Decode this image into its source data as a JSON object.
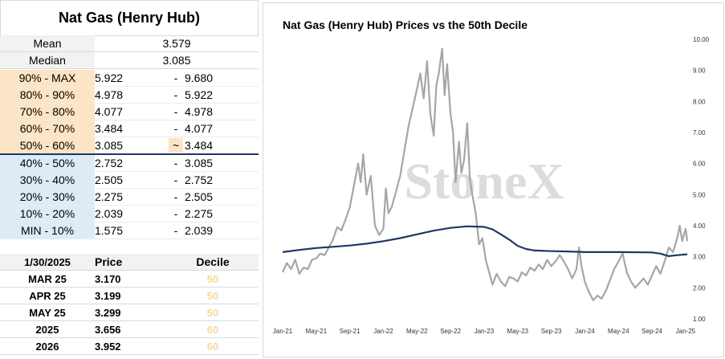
{
  "left_panel": {
    "title": "Nat Gas (Henry Hub)",
    "stats": [
      {
        "label": "Mean",
        "value": "3.579"
      },
      {
        "label": "Median",
        "value": "3.085"
      }
    ],
    "deciles": [
      {
        "label": "90% - MAX",
        "low": "5.922",
        "sep": "-",
        "high": "9.680",
        "group": "upper"
      },
      {
        "label": "80% - 90%",
        "low": "4.978",
        "sep": "-",
        "high": "5.922",
        "group": "upper"
      },
      {
        "label": "70% - 80%",
        "low": "4.077",
        "sep": "-",
        "high": "4.978",
        "group": "upper"
      },
      {
        "label": "60% - 70%",
        "low": "3.484",
        "sep": "-",
        "high": "4.077",
        "group": "upper"
      },
      {
        "label": "50% - 60%",
        "low": "3.085",
        "sep": "~",
        "high": "3.484",
        "group": "upper"
      },
      {
        "label": "40% - 50%",
        "low": "2.752",
        "sep": "-",
        "high": "3.085",
        "group": "lower"
      },
      {
        "label": "30% - 40%",
        "low": "2.505",
        "sep": "-",
        "high": "2.752",
        "group": "lower"
      },
      {
        "label": "20% - 30%",
        "low": "2.275",
        "sep": "-",
        "high": "2.505",
        "group": "lower"
      },
      {
        "label": "10% - 20%",
        "low": "2.039",
        "sep": "-",
        "high": "2.275",
        "group": "lower"
      },
      {
        "label": "MIN - 10%",
        "low": "1.575",
        "sep": "-",
        "high": "2.039",
        "group": "lower"
      }
    ],
    "price_table": {
      "date": "1/30/2025",
      "price_header": "Price",
      "decile_header": "Decile",
      "rows": [
        {
          "label": "MAR 25",
          "price": "3.170",
          "decile": "50"
        },
        {
          "label": "APR 25",
          "price": "3.199",
          "decile": "50"
        },
        {
          "label": "MAY 25",
          "price": "3.299",
          "decile": "50"
        },
        {
          "label": "2025",
          "price": "3.656",
          "decile": "60"
        },
        {
          "label": "2026",
          "price": "3.952",
          "decile": "60"
        }
      ]
    }
  },
  "colors": {
    "upper_decile": "#fce4c4",
    "lower_decile": "#ddebf7",
    "price_line": "#a6a6a6",
    "median_line": "#1f3864",
    "decile_text": "#f6d89c"
  },
  "watermark": "StoneX",
  "chart_data": {
    "type": "line",
    "title": "Nat Gas (Henry Hub) Prices vs the 50th Decile",
    "x_unit": "months since Jan-21",
    "x_ticks": [
      {
        "x": 0,
        "label": "Jan-21"
      },
      {
        "x": 4,
        "label": "May-21"
      },
      {
        "x": 8,
        "label": "Sep-21"
      },
      {
        "x": 12,
        "label": "Jan-22"
      },
      {
        "x": 16,
        "label": "May-22"
      },
      {
        "x": 20,
        "label": "Sep-22"
      },
      {
        "x": 24,
        "label": "Jan-23"
      },
      {
        "x": 28,
        "label": "May-23"
      },
      {
        "x": 32,
        "label": "Sep-23"
      },
      {
        "x": 36,
        "label": "Jan-24"
      },
      {
        "x": 40,
        "label": "May-24"
      },
      {
        "x": 44,
        "label": "Sep-24"
      },
      {
        "x": 48,
        "label": "Jan-25"
      }
    ],
    "y_ticks": [
      "1.00",
      "2.00",
      "3.00",
      "4.00",
      "5.00",
      "6.00",
      "7.00",
      "8.00",
      "9.00",
      "10.00"
    ],
    "ylim": [
      1,
      10
    ],
    "xlim": [
      0,
      48.2
    ],
    "y_axis_side": "right",
    "grid": false,
    "series": [
      {
        "style": "price",
        "points": [
          [
            0,
            2.5
          ],
          [
            0.5,
            2.8
          ],
          [
            1,
            2.6
          ],
          [
            1.5,
            2.9
          ],
          [
            2,
            2.45
          ],
          [
            2.5,
            2.65
          ],
          [
            3,
            2.6
          ],
          [
            3.5,
            2.9
          ],
          [
            4,
            2.95
          ],
          [
            4.5,
            3.1
          ],
          [
            5,
            3.05
          ],
          [
            5.5,
            3.3
          ],
          [
            6,
            3.55
          ],
          [
            6.5,
            3.95
          ],
          [
            7,
            3.85
          ],
          [
            7.5,
            4.2
          ],
          [
            8,
            4.6
          ],
          [
            8.5,
            5.3
          ],
          [
            9,
            6.0
          ],
          [
            9.3,
            5.4
          ],
          [
            9.6,
            6.3
          ],
          [
            10,
            5.0
          ],
          [
            10.5,
            5.6
          ],
          [
            11,
            4.0
          ],
          [
            11.5,
            3.7
          ],
          [
            12,
            3.9
          ],
          [
            12.3,
            5.2
          ],
          [
            12.6,
            4.4
          ],
          [
            13,
            4.6
          ],
          [
            13.5,
            5.1
          ],
          [
            14,
            5.6
          ],
          [
            14.5,
            6.4
          ],
          [
            15,
            7.2
          ],
          [
            15.5,
            7.8
          ],
          [
            16,
            8.4
          ],
          [
            16.4,
            8.9
          ],
          [
            16.8,
            8.1
          ],
          [
            17.2,
            9.3
          ],
          [
            17.6,
            7.6
          ],
          [
            18,
            6.9
          ],
          [
            18.3,
            8.5
          ],
          [
            18.6,
            8.9
          ],
          [
            19,
            9.7
          ],
          [
            19.3,
            8.2
          ],
          [
            19.6,
            9.2
          ],
          [
            20,
            7.6
          ],
          [
            20.3,
            7.0
          ],
          [
            20.6,
            5.4
          ],
          [
            21,
            6.7
          ],
          [
            21.3,
            5.7
          ],
          [
            21.6,
            6.1
          ],
          [
            22,
            7.3
          ],
          [
            22.3,
            5.5
          ],
          [
            22.6,
            5.0
          ],
          [
            23,
            4.4
          ],
          [
            23.4,
            3.4
          ],
          [
            23.8,
            3.6
          ],
          [
            24.2,
            2.9
          ],
          [
            24.6,
            2.5
          ],
          [
            25,
            2.1
          ],
          [
            25.5,
            2.45
          ],
          [
            26,
            2.2
          ],
          [
            26.5,
            2.05
          ],
          [
            27,
            2.35
          ],
          [
            27.5,
            2.3
          ],
          [
            28,
            2.2
          ],
          [
            28.5,
            2.5
          ],
          [
            29,
            2.4
          ],
          [
            29.5,
            2.65
          ],
          [
            30,
            2.55
          ],
          [
            30.5,
            2.75
          ],
          [
            31,
            2.6
          ],
          [
            31.5,
            2.9
          ],
          [
            32,
            2.7
          ],
          [
            32.5,
            2.85
          ],
          [
            33,
            3.05
          ],
          [
            33.5,
            2.85
          ],
          [
            34,
            2.6
          ],
          [
            34.5,
            2.3
          ],
          [
            35,
            2.6
          ],
          [
            35.3,
            3.3
          ],
          [
            35.6,
            2.7
          ],
          [
            36,
            2.2
          ],
          [
            36.5,
            1.85
          ],
          [
            37,
            1.6
          ],
          [
            37.5,
            1.75
          ],
          [
            38,
            1.65
          ],
          [
            38.5,
            1.9
          ],
          [
            39,
            2.25
          ],
          [
            39.5,
            2.6
          ],
          [
            40,
            2.85
          ],
          [
            40.5,
            3.1
          ],
          [
            41,
            2.5
          ],
          [
            41.5,
            2.2
          ],
          [
            42,
            2.0
          ],
          [
            42.5,
            2.15
          ],
          [
            43,
            2.3
          ],
          [
            43.5,
            2.1
          ],
          [
            44,
            2.4
          ],
          [
            44.5,
            2.7
          ],
          [
            45,
            2.45
          ],
          [
            45.5,
            2.85
          ],
          [
            46,
            3.3
          ],
          [
            46.5,
            3.15
          ],
          [
            47,
            3.6
          ],
          [
            47.3,
            4.0
          ],
          [
            47.6,
            3.5
          ],
          [
            48,
            3.9
          ],
          [
            48.2,
            3.5
          ]
        ]
      },
      {
        "style": "median",
        "points": [
          [
            0,
            3.15
          ],
          [
            2,
            3.22
          ],
          [
            4,
            3.28
          ],
          [
            6,
            3.32
          ],
          [
            8,
            3.36
          ],
          [
            10,
            3.42
          ],
          [
            12,
            3.5
          ],
          [
            14,
            3.6
          ],
          [
            16,
            3.72
          ],
          [
            18,
            3.84
          ],
          [
            20,
            3.93
          ],
          [
            22,
            3.98
          ],
          [
            24,
            3.96
          ],
          [
            25,
            3.88
          ],
          [
            26,
            3.72
          ],
          [
            27,
            3.55
          ],
          [
            28,
            3.35
          ],
          [
            29,
            3.25
          ],
          [
            30,
            3.2
          ],
          [
            32,
            3.18
          ],
          [
            34,
            3.17
          ],
          [
            36,
            3.15
          ],
          [
            40,
            3.15
          ],
          [
            44,
            3.14
          ],
          [
            45,
            3.1
          ],
          [
            46,
            3.02
          ],
          [
            47,
            3.05
          ],
          [
            48.2,
            3.08
          ]
        ]
      }
    ]
  }
}
